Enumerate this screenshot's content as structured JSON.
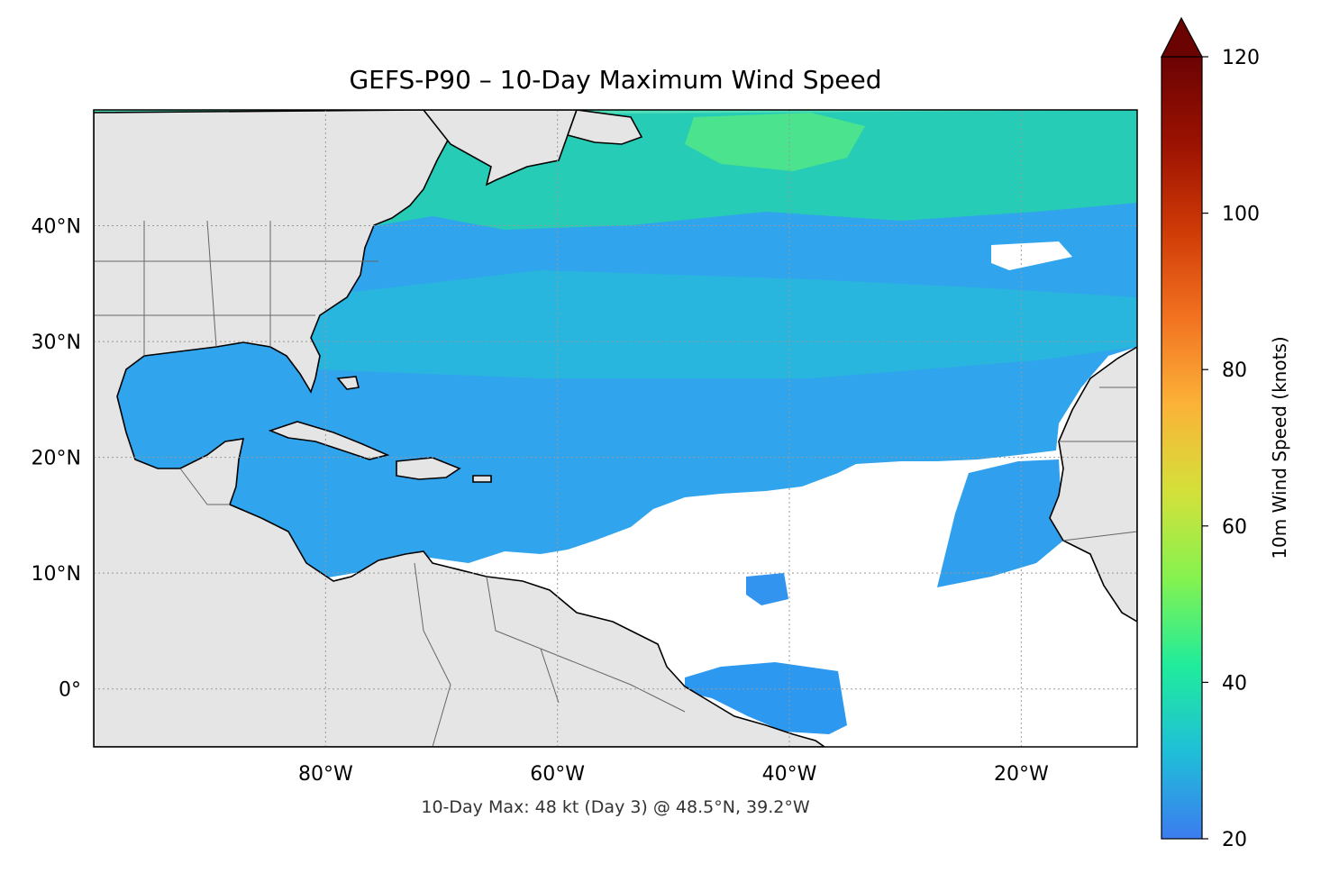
{
  "title": "GEFS-P90 – 10-Day Maximum Wind Speed",
  "footer": "10-Day Max: 48 kt (Day 3) @ 48.5°N, 39.2°W",
  "map": {
    "extent": {
      "lon": [
        -100,
        -10
      ],
      "lat": [
        -5,
        50
      ]
    },
    "lon_ticks": [
      {
        "value": -80,
        "label": "80°W"
      },
      {
        "value": -60,
        "label": "60°W"
      },
      {
        "value": -40,
        "label": "40°W"
      },
      {
        "value": -20,
        "label": "20°W"
      }
    ],
    "lat_ticks": [
      {
        "value": 40,
        "label": "40°N"
      },
      {
        "value": 30,
        "label": "30°N"
      },
      {
        "value": 20,
        "label": "20°N"
      },
      {
        "value": 10,
        "label": "10°N"
      },
      {
        "value": 0,
        "label": "0°"
      }
    ],
    "gridlines": true,
    "land_color": "#e5e5e5",
    "coastline_color": "#000000",
    "border_color": "#666666"
  },
  "colorbar": {
    "label": "10m Wind Speed (knots)",
    "min": 20,
    "max": 120,
    "extend": "max",
    "ticks": [
      20,
      40,
      60,
      80,
      100,
      120
    ],
    "colors": [
      "#3c7cf0",
      "#1fbfd8",
      "#20ec9b",
      "#85f24f",
      "#d4e03a",
      "#fbb238",
      "#f27221",
      "#cf3a06",
      "#9b1202",
      "#6b0303"
    ]
  },
  "wind_field": {
    "max_value_kt": 48,
    "max_day": 3,
    "max_location": {
      "lat": 48.5,
      "lon": -39.2
    }
  }
}
